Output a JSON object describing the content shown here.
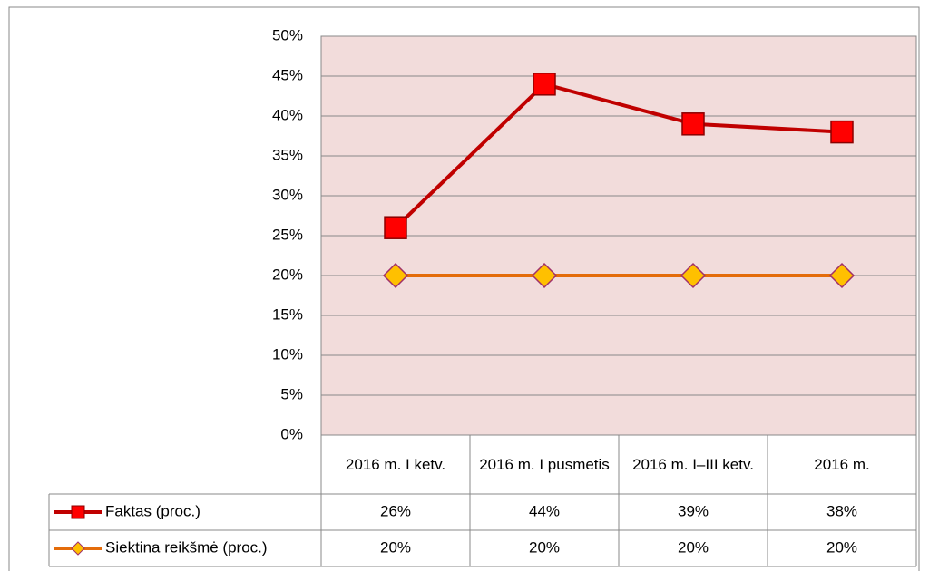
{
  "chart_data": {
    "type": "line",
    "categories": [
      "2016 m. I ketv.",
      "2016 m. I pusmetis",
      "2016 m. I–III ketv.",
      "2016 m."
    ],
    "series": [
      {
        "name": "Faktas (proc.)",
        "color": "#c00000",
        "marker_color": "#ff0000",
        "marker": "square",
        "values": [
          26,
          44,
          39,
          38
        ],
        "value_labels": [
          "26%",
          "44%",
          "39%",
          "38%"
        ]
      },
      {
        "name": "Siektina reikšmė (proc.)",
        "color": "#e46c0a",
        "marker_color": "#ffc000",
        "marker": "diamond",
        "values": [
          20,
          20,
          20,
          20
        ],
        "value_labels": [
          "20%",
          "20%",
          "20%",
          "20%"
        ]
      }
    ],
    "ylim": [
      0,
      50
    ],
    "yticks": [
      {
        "value": 0,
        "label": "0%"
      },
      {
        "value": 5,
        "label": "5%"
      },
      {
        "value": 10,
        "label": "10%"
      },
      {
        "value": 15,
        "label": "15%"
      },
      {
        "value": 20,
        "label": "20%"
      },
      {
        "value": 25,
        "label": "25%"
      },
      {
        "value": 30,
        "label": "30%"
      },
      {
        "value": 35,
        "label": "35%"
      },
      {
        "value": 40,
        "label": "40%"
      },
      {
        "value": 45,
        "label": "45%"
      },
      {
        "value": 50,
        "label": "50%"
      }
    ],
    "grid": true
  }
}
